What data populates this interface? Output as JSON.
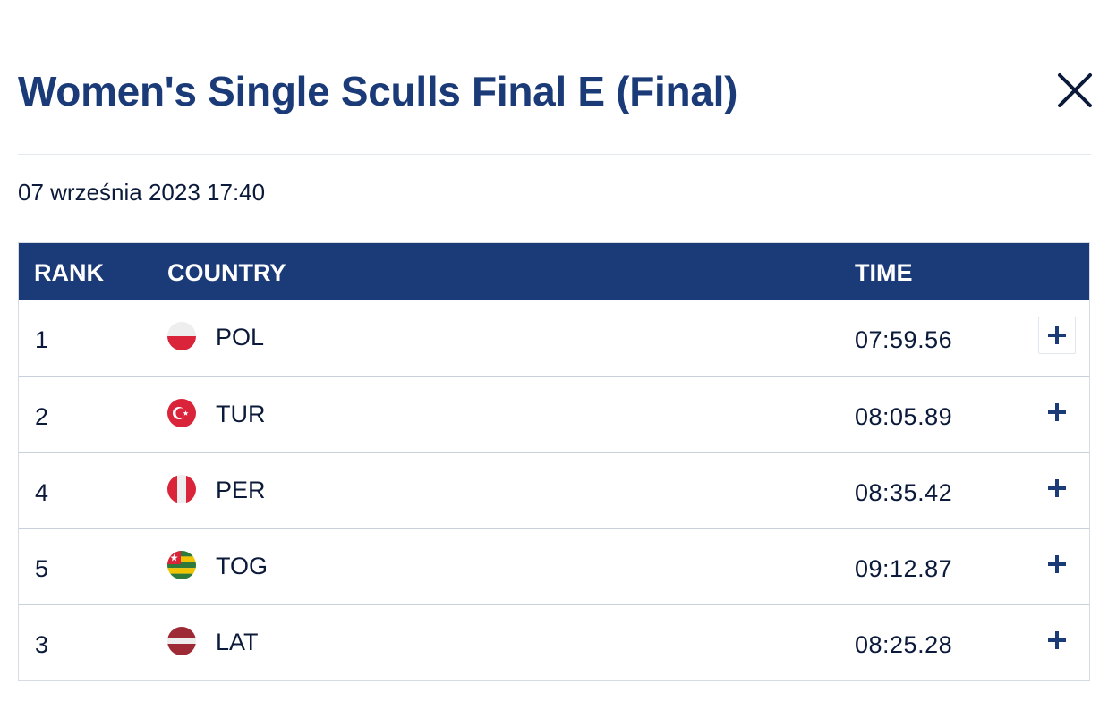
{
  "modal": {
    "title": "Women's Single Sculls Final E (Final)",
    "datetime": "07 września 2023 17:40",
    "close_icon": "close-icon"
  },
  "table": {
    "headers": {
      "rank": "RANK",
      "country": "COUNTRY",
      "time": "TIME"
    },
    "rows": [
      {
        "rank": "1",
        "country": "POL",
        "time": "07:59.56",
        "flag": "poland-flag-icon",
        "expand_icon": "plus-icon"
      },
      {
        "rank": "2",
        "country": "TUR",
        "time": "08:05.89",
        "flag": "turkey-flag-icon",
        "expand_icon": "plus-icon"
      },
      {
        "rank": "4",
        "country": "PER",
        "time": "08:35.42",
        "flag": "peru-flag-icon",
        "expand_icon": "plus-icon"
      },
      {
        "rank": "5",
        "country": "TOG",
        "time": "09:12.87",
        "flag": "togo-flag-icon",
        "expand_icon": "plus-icon"
      },
      {
        "rank": "3",
        "country": "LAT",
        "time": "08:25.28",
        "flag": "latvia-flag-icon",
        "expand_icon": "plus-icon"
      }
    ]
  },
  "colors": {
    "header_bg": "#1a3a78",
    "title": "#1a3a78",
    "text": "#0b1a3a",
    "row_border": "#c9d0dc"
  }
}
